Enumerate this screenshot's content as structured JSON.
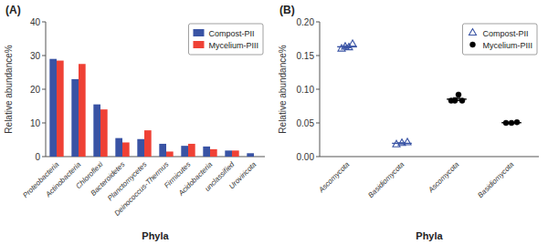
{
  "chart_data": [
    {
      "type": "bar",
      "title": "(A)",
      "xlabel": "Phyla",
      "ylabel": "Relative abundance%",
      "categories": [
        "Proteobacteria",
        "Actinobacteria",
        "Chloroflexi",
        "Bacteroidetes",
        "Planctomycetes",
        "Deinococcus-Thermus",
        "Firmicutes",
        "Acidobacteria",
        "unclassified",
        "Uroviricota"
      ],
      "series": [
        {
          "name": "Compost-PII",
          "color": "#3953A4",
          "values": [
            29.0,
            23.0,
            15.5,
            5.5,
            5.2,
            3.8,
            3.2,
            3.0,
            1.8,
            1.0
          ]
        },
        {
          "name": "Mycelium-PIII",
          "color": "#EF4135",
          "values": [
            28.5,
            27.5,
            14.0,
            4.2,
            7.8,
            1.5,
            3.8,
            2.2,
            1.8,
            0.0
          ]
        }
      ],
      "ylim": [
        0,
        40
      ],
      "yticks": [
        0,
        10,
        20,
        30,
        40
      ],
      "legend": "upper right"
    },
    {
      "type": "scatter",
      "title": "(B)",
      "xlabel": "Phyla",
      "ylabel": "Relative abundance%",
      "categories": [
        "Ascomycota",
        "Basidiomycota",
        "Ascomycota",
        "Basidiomycota"
      ],
      "series": [
        {
          "name": "Compost-PII",
          "color": "#3953A4",
          "marker": "triangle",
          "values": [
            [
              0.16,
              0.163,
              0.162,
              0.167
            ],
            [
              0.018,
              0.02,
              0.021
            ],
            null,
            null
          ],
          "mean": [
            0.163,
            0.0196667,
            null,
            null
          ],
          "error": [
            0.00147196,
            0.00088192,
            null,
            null
          ]
        },
        {
          "name": "Mycelium-PIII",
          "color": "#000000",
          "marker": "circle",
          "values": [
            null,
            null,
            [
              0.083,
              0.083,
              0.092,
              0.083
            ],
            [
              0.05,
              0.05,
              0.051
            ]
          ],
          "mean": [
            null,
            null,
            0.08525,
            0.0503333
          ],
          "error": [
            null,
            null,
            0.00225,
            0.000333333
          ]
        }
      ],
      "ylim": [
        0.0,
        0.2
      ],
      "yticks": [
        {
          "value": 0,
          "label": "0.00"
        },
        0.05,
        {
          "value": 0.1,
          "label": "0.10"
        },
        0.15,
        {
          "value": 0.2,
          "label": "0.20"
        }
      ],
      "legend": "upper right"
    }
  ]
}
